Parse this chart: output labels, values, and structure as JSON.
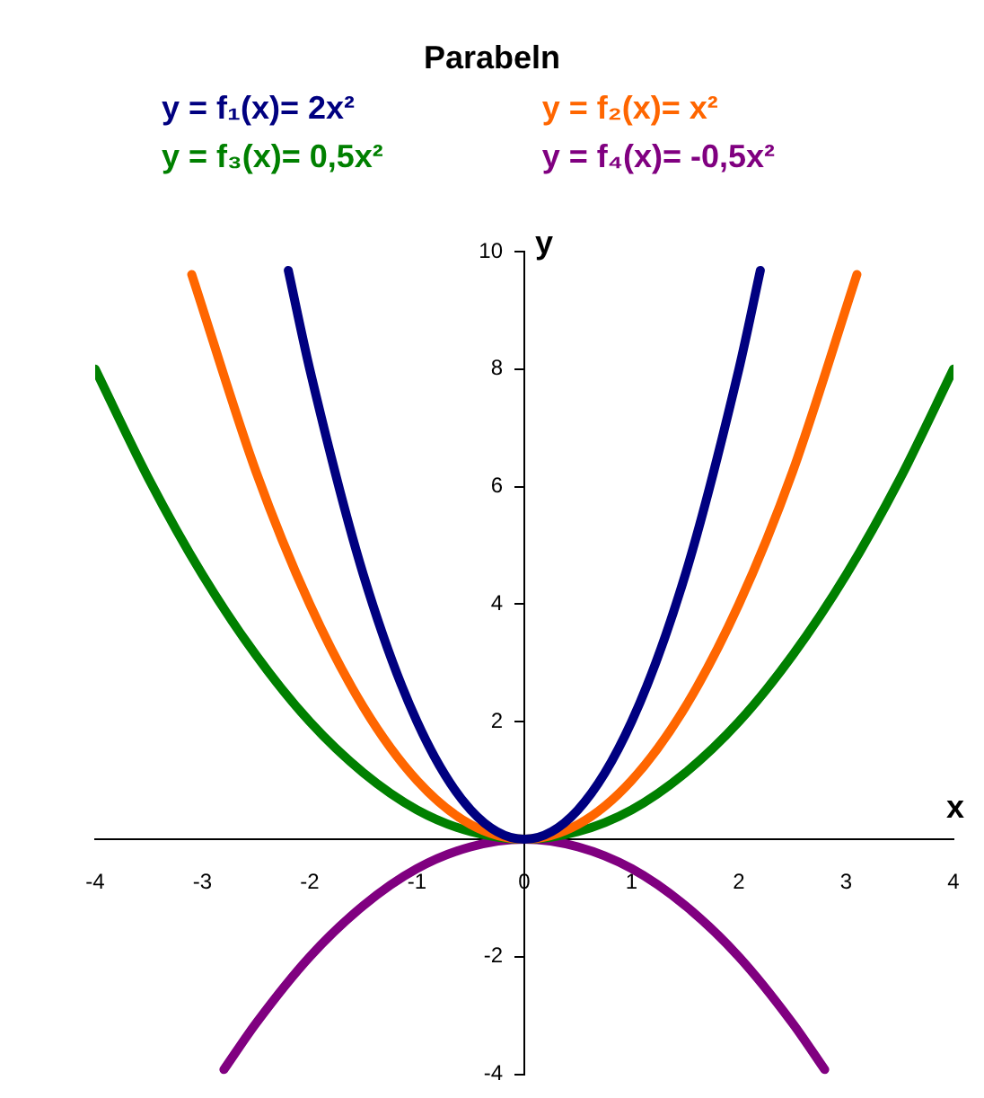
{
  "chart_data": {
    "type": "line",
    "title": "Parabeln",
    "xlabel": "x",
    "ylabel": "y",
    "legend": "top",
    "marker": "none",
    "grid": false,
    "xlim": [
      -4,
      4
    ],
    "xticks": [
      -4,
      -3,
      -2,
      -1,
      0,
      1,
      2,
      3,
      4
    ],
    "ylim": [
      -4,
      10
    ],
    "yticks": [
      -4,
      -2,
      {
        "value": 0,
        "label": null
      },
      2,
      4,
      6,
      8,
      10
    ],
    "series": [
      {
        "name": "y = f₁(x)= 2x²",
        "color": "#000080",
        "x": [
          -2.2,
          -2,
          -1.5,
          -1,
          -0.5,
          0,
          0.5,
          1,
          1.5,
          2,
          2.2
        ],
        "values": [
          9.68,
          8,
          4.5,
          2,
          0.5,
          0,
          0.5,
          2,
          4.5,
          8,
          9.68
        ]
      },
      {
        "name": "y = f₂(x)= x²",
        "color": "#ff6600",
        "x": [
          -3.1,
          -2.5,
          -2,
          -1.5,
          -1,
          -0.5,
          0,
          0.5,
          1,
          1.5,
          2,
          2.5,
          3.1
        ],
        "values": [
          9.61,
          6.25,
          4,
          2.25,
          1,
          0.25,
          0,
          0.25,
          1,
          2.25,
          4,
          6.25,
          9.61
        ]
      },
      {
        "name": "y = f₃(x)= 0,5x²",
        "color": "#008000",
        "x": [
          -4,
          -3.5,
          -3,
          -2.5,
          -2,
          -1.5,
          -1,
          -0.5,
          0,
          0.5,
          1,
          1.5,
          2,
          2.5,
          3,
          3.5,
          4
        ],
        "values": [
          8,
          6.13,
          4.5,
          3.13,
          2,
          1.13,
          0.5,
          0.13,
          0,
          0.13,
          0.5,
          1.13,
          2,
          3.13,
          4.5,
          6.13,
          8
        ]
      },
      {
        "name": "y = f₄(x)= -0,5x²",
        "color": "#800080",
        "x": [
          -2.8,
          -2.5,
          -2,
          -1.5,
          -1,
          -0.5,
          0,
          0.5,
          1,
          1.5,
          2,
          2.5,
          2.8
        ],
        "values": [
          -3.92,
          -3.13,
          -2,
          -1.13,
          -0.5,
          -0.13,
          0,
          -0.13,
          -0.5,
          -1.13,
          -2,
          -3.13,
          -3.92
        ]
      }
    ]
  }
}
